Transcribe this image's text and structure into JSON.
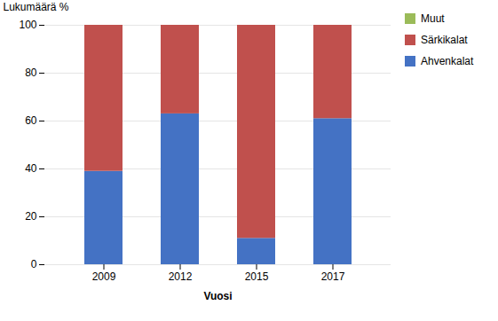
{
  "chart_data": {
    "type": "bar",
    "stacked": true,
    "categories": [
      "2009",
      "2012",
      "2015",
      "2017"
    ],
    "series": [
      {
        "name": "Ahvenkalat",
        "color": "#4472C4",
        "values": [
          39,
          63,
          11,
          61
        ]
      },
      {
        "name": "Särkikalat",
        "color": "#C0504D",
        "values": [
          61,
          37,
          89,
          39
        ]
      },
      {
        "name": "Muut",
        "color": "#9BBB59",
        "values": [
          0,
          0,
          0,
          0
        ]
      }
    ],
    "xlabel": "Vuosi",
    "ylabel": "Lukumäärä %",
    "ylim": [
      0,
      100
    ],
    "yticks": [
      0,
      20,
      40,
      60,
      80,
      100
    ],
    "grid": true,
    "legend": "right"
  }
}
